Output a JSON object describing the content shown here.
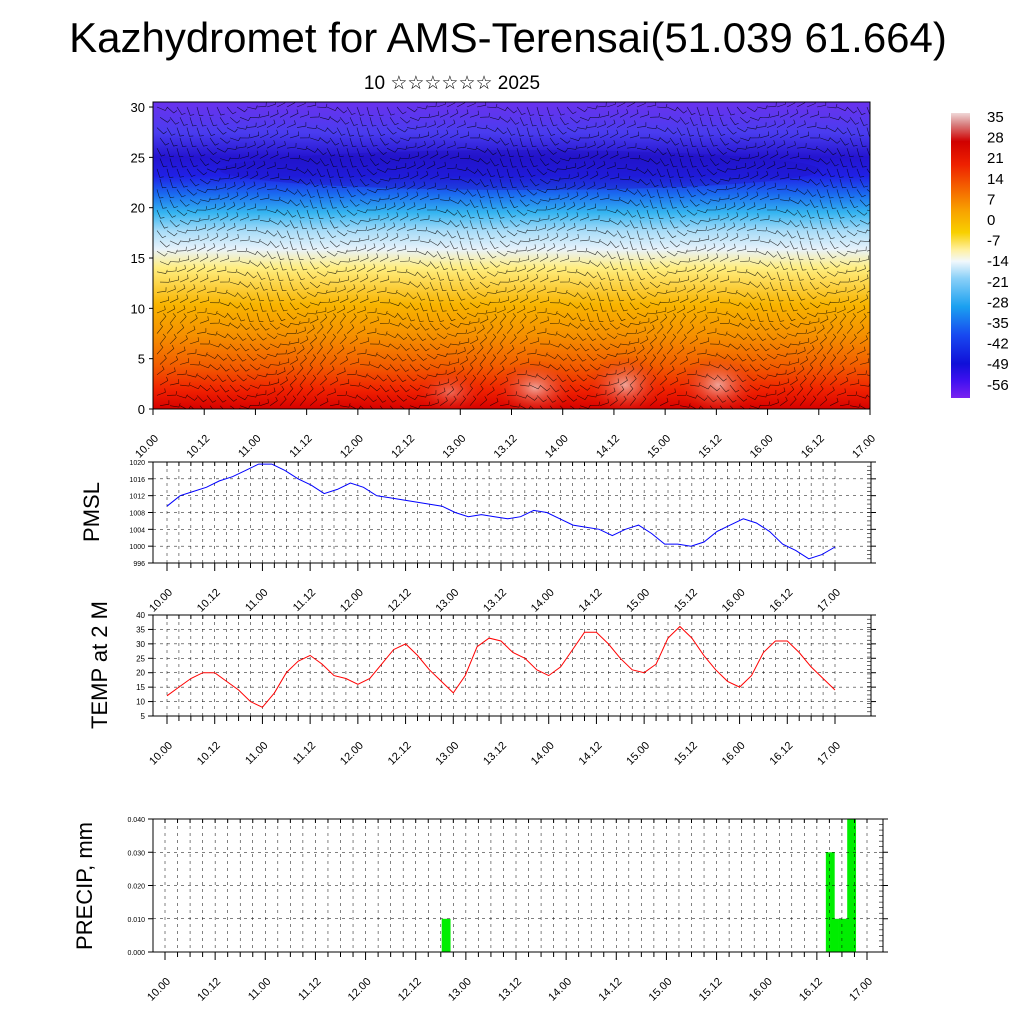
{
  "title": "Kazhydromet for AMS-Terensai(51.039 61.664)",
  "subtitle": "10 ☆☆☆☆☆☆ 2025",
  "time_labels": [
    "10.00",
    "10.12",
    "11.00",
    "11.12",
    "12.00",
    "12.12",
    "13.00",
    "13.12",
    "14.00",
    "14.12",
    "15.00",
    "15.12",
    "16.00",
    "16.12",
    "17.00"
  ],
  "colorbar": {
    "labels": [
      "35",
      "28",
      "21",
      "14",
      "7",
      "0",
      "-7",
      "-14",
      "-21",
      "-28",
      "-35",
      "-42",
      "-49",
      "-56"
    ]
  },
  "chart_data": [
    {
      "type": "heatmap",
      "name": "cross-section",
      "yticks": [
        "0",
        "5",
        "10",
        "15",
        "20",
        "25",
        "30"
      ],
      "ylim": [
        0,
        30.5
      ],
      "x": [
        "10.00",
        "10.12",
        "11.00",
        "11.12",
        "12.00",
        "12.12",
        "13.00",
        "13.12",
        "14.00",
        "14.12",
        "15.00",
        "15.12",
        "16.00",
        "16.12",
        "17.00"
      ],
      "levels": [
        0,
        3,
        6,
        9,
        12,
        15,
        18,
        21,
        24,
        27,
        30
      ],
      "values_rows_low_to_high": [
        [
          18,
          14,
          10,
          16,
          20,
          15,
          18,
          26,
          24,
          30,
          28,
          32,
          24,
          28,
          20
        ],
        [
          16,
          13,
          10,
          15,
          18,
          15,
          17,
          22,
          22,
          24,
          24,
          26,
          22,
          24,
          18
        ],
        [
          14,
          12,
          10,
          13,
          15,
          14,
          15,
          18,
          18,
          20,
          20,
          21,
          18,
          19,
          15
        ],
        [
          10,
          9,
          8,
          9,
          10,
          10,
          10,
          12,
          12,
          12,
          13,
          13,
          12,
          12,
          10
        ],
        [
          4,
          3,
          3,
          3,
          4,
          4,
          4,
          4,
          5,
          5,
          5,
          5,
          5,
          4,
          3
        ],
        [
          -8,
          -9,
          -9,
          -9,
          -8,
          -8,
          -8,
          -8,
          -7,
          -7,
          -7,
          -7,
          -8,
          -8,
          -9
        ],
        [
          -22,
          -23,
          -24,
          -24,
          -23,
          -23,
          -22,
          -22,
          -22,
          -22,
          -22,
          -22,
          -23,
          -24,
          -25
        ],
        [
          -38,
          -39,
          -40,
          -40,
          -40,
          -39,
          -39,
          -39,
          -39,
          -39,
          -39,
          -39,
          -40,
          -41,
          -42
        ],
        [
          -50,
          -52,
          -54,
          -55,
          -55,
          -56,
          -56,
          -57,
          -57,
          -58,
          -58,
          -59,
          -59,
          -58,
          -55
        ],
        [
          -50,
          -52,
          -53,
          -54,
          -54,
          -54,
          -54,
          -55,
          -55,
          -55,
          -56,
          -56,
          -55,
          -54,
          -52
        ],
        [
          -52,
          -53,
          -55,
          -56,
          -56,
          -56,
          -57,
          -57,
          -57,
          -58,
          -58,
          -58,
          -57,
          -56,
          -55
        ]
      ],
      "colorbar_range": [
        -56,
        35
      ]
    },
    {
      "type": "line",
      "ylabel": "PMSL",
      "ylim": [
        996,
        1020
      ],
      "yticks": [
        "996",
        "1000",
        "1004",
        "1008",
        "1012",
        "1016",
        "1020"
      ],
      "color": "#0000ff",
      "values": [
        1009.5,
        1012,
        1013,
        1014,
        1015.5,
        1016.5,
        1018,
        1019.5,
        1019.5,
        1018,
        1016,
        1014.5,
        1012.5,
        1013.5,
        1015,
        1014,
        1012,
        1011.5,
        1011,
        1010.5,
        1010,
        1009.5,
        1008,
        1007,
        1007.5,
        1007,
        1006.5,
        1007,
        1008.5,
        1008,
        1006.5,
        1005,
        1004.5,
        1004,
        1002.5,
        1004,
        1005,
        1003,
        1000.5,
        1000.5,
        1000,
        1001,
        1003.5,
        1005,
        1006.5,
        1005.5,
        1003.5,
        1000.5,
        999,
        997,
        998,
        999.8
      ]
    },
    {
      "type": "line",
      "ylabel": "TEMP at 2 M",
      "ylim": [
        5,
        40
      ],
      "yticks": [
        "5",
        "10",
        "15",
        "20",
        "25",
        "30",
        "35",
        "40"
      ],
      "color": "#ff0000",
      "values": [
        12,
        15,
        18,
        20,
        20,
        17,
        14,
        10,
        8,
        13,
        20,
        24,
        26,
        23,
        19,
        18,
        16,
        18,
        23,
        28,
        30,
        26,
        21,
        17,
        13,
        19,
        29,
        32,
        31,
        27,
        25,
        21,
        19,
        22,
        28,
        34,
        34,
        30,
        25,
        21,
        20,
        23,
        32,
        36,
        32,
        26,
        21,
        17,
        15,
        19,
        27,
        31,
        31,
        27,
        22,
        18,
        14
      ]
    },
    {
      "type": "bar",
      "ylabel": "PRECIP, mm",
      "ylim": [
        0,
        0.04
      ],
      "yticks": [
        "0.000",
        "0.010",
        "0.020",
        "0.030",
        "0.040"
      ],
      "color": "#00ee00",
      "values": [
        0,
        0,
        0,
        0,
        0,
        0,
        0,
        0,
        0,
        0,
        0,
        0,
        0,
        0,
        0,
        0,
        0,
        0,
        0,
        0,
        0,
        0,
        0,
        0,
        0,
        0,
        0,
        0,
        0,
        0,
        0,
        0,
        0,
        0,
        0,
        0,
        0,
        0,
        0,
        0,
        0,
        0,
        0,
        0,
        0,
        0,
        0,
        0,
        0,
        0,
        0,
        0,
        0,
        0,
        0,
        0,
        0,
        0,
        0,
        0,
        0,
        0,
        0,
        0,
        0,
        0,
        0.01,
        0.01,
        0,
        0,
        0,
        0,
        0,
        0,
        0,
        0,
        0,
        0,
        0,
        0,
        0,
        0,
        0,
        0,
        0,
        0,
        0,
        0,
        0,
        0,
        0,
        0,
        0,
        0,
        0,
        0,
        0,
        0,
        0,
        0,
        0,
        0,
        0,
        0,
        0,
        0,
        0,
        0,
        0,
        0,
        0,
        0,
        0,
        0,
        0,
        0,
        0,
        0,
        0,
        0,
        0,
        0,
        0,
        0,
        0,
        0,
        0,
        0,
        0,
        0,
        0,
        0,
        0,
        0,
        0,
        0,
        0,
        0,
        0,
        0,
        0,
        0,
        0,
        0,
        0,
        0,
        0,
        0,
        0,
        0,
        0,
        0,
        0,
        0,
        0,
        0,
        0.03,
        0.03,
        0.01,
        0.01,
        0.01,
        0.04,
        0.04,
        0
      ]
    }
  ]
}
